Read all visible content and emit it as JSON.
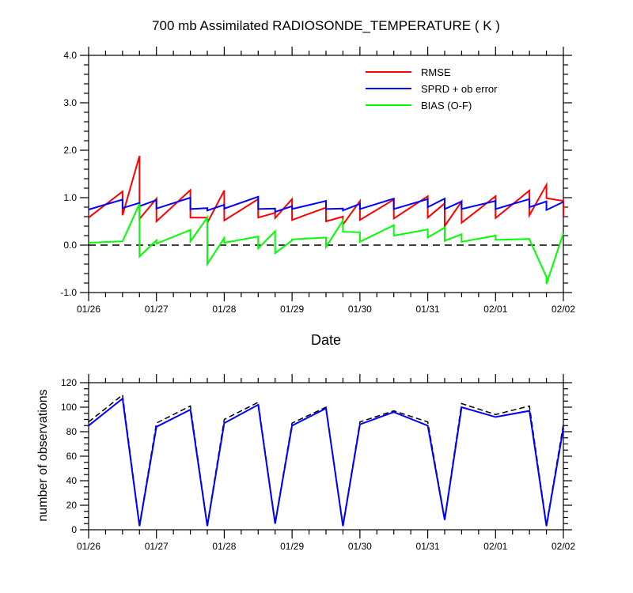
{
  "chart_data": [
    {
      "type": "line",
      "title": "700 mb Assimilated RADIOSONDE_TEMPERATURE ( K )",
      "xlabel": "Date",
      "ylabel": "",
      "x_tick_labels": [
        "01/26",
        "01/27",
        "01/28",
        "01/29",
        "01/30",
        "01/31",
        "02/01",
        "02/02"
      ],
      "y_tick_labels": [
        "4.0",
        "3.0",
        "2.0",
        "1.0",
        "0.0",
        "-1.0"
      ],
      "xlim": [
        0,
        7
      ],
      "ylim": [
        -1,
        4
      ],
      "x_unit": "days since 01/26 00Z",
      "zero_line": {
        "y": 0,
        "style": "dashed"
      },
      "legend_placement": "top-right",
      "series": [
        {
          "name": "RMSE",
          "color": "#ff0000",
          "points": [
            [
              0,
              0.58
            ],
            [
              0.5,
              1.13
            ],
            [
              0.5,
              0.63
            ],
            [
              0.75,
              1.88
            ],
            [
              0.75,
              0.55
            ],
            [
              1,
              0.98
            ],
            [
              1,
              0.5
            ],
            [
              1.5,
              1.16
            ],
            [
              1.5,
              0.58
            ],
            [
              1.75,
              0.58
            ],
            [
              1.75,
              0.47
            ],
            [
              2,
              1.15
            ],
            [
              2,
              0.52
            ],
            [
              2.5,
              0.97
            ],
            [
              2.5,
              0.58
            ],
            [
              2.75,
              0.68
            ],
            [
              2.75,
              0.57
            ],
            [
              3,
              0.97
            ],
            [
              3,
              0.53
            ],
            [
              3.5,
              0.79
            ],
            [
              3.5,
              0.5
            ],
            [
              3.75,
              0.6
            ],
            [
              3.75,
              0.43
            ],
            [
              4,
              0.93
            ],
            [
              4,
              0.53
            ],
            [
              4.5,
              0.96
            ],
            [
              4.5,
              0.56
            ],
            [
              5,
              1.03
            ],
            [
              5,
              0.58
            ],
            [
              5.25,
              0.88
            ],
            [
              5.25,
              0.4
            ],
            [
              5.5,
              0.92
            ],
            [
              5.5,
              0.47
            ],
            [
              6,
              1.03
            ],
            [
              6,
              0.57
            ],
            [
              6.5,
              1.15
            ],
            [
              6.5,
              0.63
            ],
            [
              6.75,
              1.27
            ],
            [
              6.75,
              0.99
            ],
            [
              7,
              0.93
            ],
            [
              7,
              0.6
            ]
          ]
        },
        {
          "name": "SPRD + ob error",
          "color": "#0000ff",
          "points": [
            [
              0,
              0.75
            ],
            [
              0.5,
              0.96
            ],
            [
              0.5,
              0.78
            ],
            [
              0.75,
              0.89
            ],
            [
              0.75,
              0.82
            ],
            [
              1,
              0.95
            ],
            [
              1,
              0.77
            ],
            [
              1.5,
              1.0
            ],
            [
              1.5,
              0.76
            ],
            [
              1.75,
              0.78
            ],
            [
              1.75,
              0.73
            ],
            [
              2,
              0.85
            ],
            [
              2,
              0.77
            ],
            [
              2.5,
              1.02
            ],
            [
              2.5,
              0.76
            ],
            [
              2.75,
              0.77
            ],
            [
              2.75,
              0.7
            ],
            [
              3,
              0.82
            ],
            [
              3,
              0.76
            ],
            [
              3.5,
              0.93
            ],
            [
              3.5,
              0.76
            ],
            [
              3.75,
              0.77
            ],
            [
              3.75,
              0.73
            ],
            [
              4,
              0.87
            ],
            [
              4,
              0.76
            ],
            [
              4.5,
              0.98
            ],
            [
              4.5,
              0.76
            ],
            [
              5,
              0.97
            ],
            [
              5,
              0.8
            ],
            [
              5.25,
              0.98
            ],
            [
              5.25,
              0.76
            ],
            [
              5.5,
              0.92
            ],
            [
              5.5,
              0.76
            ],
            [
              6,
              0.93
            ],
            [
              6,
              0.76
            ],
            [
              6.5,
              0.97
            ],
            [
              6.5,
              0.8
            ],
            [
              6.75,
              0.92
            ],
            [
              6.75,
              0.74
            ],
            [
              7,
              0.91
            ]
          ]
        },
        {
          "name": "BIAS (O-F)",
          "color": "#00ff00",
          "points": [
            [
              0,
              0.05
            ],
            [
              0.5,
              0.08
            ],
            [
              0.75,
              0.87
            ],
            [
              0.75,
              -0.24
            ],
            [
              1,
              0.1
            ],
            [
              1,
              0.03
            ],
            [
              1.5,
              0.32
            ],
            [
              1.5,
              0.08
            ],
            [
              1.75,
              0.58
            ],
            [
              1.75,
              -0.4
            ],
            [
              2,
              0.15
            ],
            [
              2,
              0.05
            ],
            [
              2.5,
              0.18
            ],
            [
              2.5,
              -0.07
            ],
            [
              2.75,
              0.29
            ],
            [
              2.75,
              -0.17
            ],
            [
              3,
              0.1
            ],
            [
              3,
              0.12
            ],
            [
              3.5,
              0.16
            ],
            [
              3.5,
              -0.04
            ],
            [
              3.75,
              0.52
            ],
            [
              3.75,
              0.28
            ],
            [
              4,
              0.27
            ],
            [
              4,
              0.07
            ],
            [
              4.5,
              0.42
            ],
            [
              4.5,
              0.2
            ],
            [
              5,
              0.33
            ],
            [
              5,
              0.16
            ],
            [
              5.25,
              0.37
            ],
            [
              5.25,
              0.09
            ],
            [
              5.5,
              0.23
            ],
            [
              5.5,
              0.07
            ],
            [
              6,
              0.2
            ],
            [
              6,
              0.11
            ],
            [
              6.5,
              0.13
            ],
            [
              6.5,
              0.12
            ],
            [
              6.75,
              -0.67
            ],
            [
              6.75,
              -0.82
            ],
            [
              7,
              0.25
            ]
          ]
        }
      ]
    },
    {
      "type": "line",
      "xlabel": "",
      "ylabel": "number of observations",
      "x_tick_labels": [
        "01/26",
        "01/27",
        "01/28",
        "01/29",
        "01/30",
        "01/31",
        "02/01",
        "02/02"
      ],
      "y_tick_labels": [
        "0",
        "20",
        "40",
        "60",
        "80",
        "100",
        "120"
      ],
      "xlim": [
        0,
        7
      ],
      "ylim": [
        0,
        120
      ],
      "x_unit": "days since 01/26 00Z",
      "series": [
        {
          "color": "#000000",
          "style": "dashed",
          "x": [
            0,
            0.5,
            0.75,
            1,
            1.5,
            1.75,
            2,
            2.5,
            2.75,
            3,
            3.5,
            3.75,
            4,
            4.5,
            5,
            5.25,
            5.5,
            6,
            6.5,
            6.75,
            7
          ],
          "values": [
            88,
            110,
            4,
            87,
            101,
            4,
            90,
            104,
            6,
            87,
            100,
            4,
            88,
            97,
            88,
            9,
            103,
            94,
            101,
            4,
            86
          ]
        },
        {
          "color": "#0000ff",
          "style": "solid",
          "x": [
            0,
            0.5,
            0.75,
            1,
            1.5,
            1.75,
            2,
            2.5,
            2.75,
            3,
            3.5,
            3.75,
            4,
            4.5,
            5,
            5.25,
            5.5,
            6,
            6.5,
            6.75,
            7
          ],
          "values": [
            85,
            107,
            3,
            84,
            98,
            3,
            87,
            102,
            5,
            85,
            99,
            3,
            86,
            96,
            85,
            8,
            100,
            92,
            97,
            3,
            83
          ]
        }
      ]
    }
  ]
}
